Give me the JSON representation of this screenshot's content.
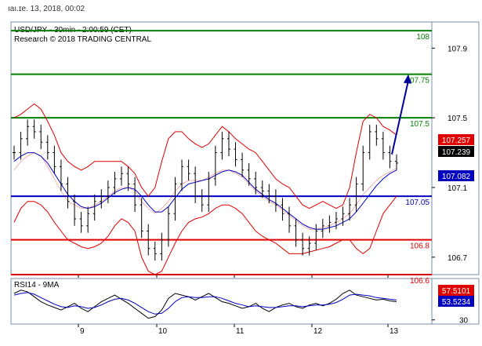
{
  "header": {
    "date_text": "ıaı.ɪe. 13, 2018, 00:02"
  },
  "chart_data": [
    {
      "type": "line",
      "title": "USD/JPY - 30min - 2:00:59 (CET)",
      "subtitle": "Research © 2018 TRADING CENTRAL",
      "ylim": [
        106.6,
        108.05
      ],
      "y_ticks": [
        106.7,
        107.1,
        107.5,
        107.9
      ],
      "y_tick_labels": [
        "106.7",
        "107.1",
        "107.5",
        "107.9"
      ],
      "x_tick_labels": [
        "9",
        "10",
        "11",
        "12",
        "13"
      ],
      "levels": [
        {
          "label": "108",
          "value": 108.0,
          "color": "#008000"
        },
        {
          "label": "107.75",
          "value": 107.75,
          "color": "#008000"
        },
        {
          "label": "107.5",
          "value": 107.5,
          "color": "#008000"
        },
        {
          "label": "107.05",
          "value": 107.05,
          "color": "#0000c0"
        },
        {
          "label": "106.8",
          "value": 106.8,
          "color": "#e00000"
        },
        {
          "label": "106.6",
          "value": 106.6,
          "color": "#e00000"
        }
      ],
      "price_tags": [
        {
          "label": "107.257",
          "value": 107.257,
          "color": "#e00000"
        },
        {
          "label": "107.239",
          "value": 107.239,
          "color": "#000000"
        },
        {
          "label": "107.082",
          "value": 107.082,
          "color": "#0000c0"
        }
      ],
      "forecast_arrow": {
        "from": 107.29,
        "to": 107.75,
        "color": "#0000a0"
      },
      "price_series": [
        107.3,
        107.38,
        107.45,
        107.42,
        107.36,
        107.3,
        107.22,
        107.12,
        107.02,
        106.92,
        106.88,
        106.95,
        107.02,
        107.05,
        107.1,
        107.15,
        107.18,
        107.12,
        107.0,
        106.85,
        106.75,
        106.72,
        106.8,
        106.95,
        107.12,
        107.22,
        107.18,
        107.05,
        107.0,
        107.15,
        107.3,
        107.38,
        107.32,
        107.26,
        107.2,
        107.15,
        107.1,
        107.08,
        107.05,
        107.0,
        106.95,
        106.88,
        106.8,
        106.75,
        106.78,
        106.85,
        106.88,
        106.9,
        106.92,
        106.95,
        107.0,
        107.12,
        107.3,
        107.42,
        107.38,
        107.3,
        107.25,
        107.24
      ],
      "bb_upper": [
        107.5,
        107.52,
        107.55,
        107.58,
        107.55,
        107.48,
        107.4,
        107.3,
        107.25,
        107.22,
        107.2,
        107.22,
        107.25,
        107.25,
        107.25,
        107.25,
        107.25,
        107.22,
        107.18,
        107.1,
        107.05,
        107.1,
        107.25,
        107.38,
        107.42,
        107.42,
        107.38,
        107.35,
        107.33,
        107.35,
        107.4,
        107.45,
        107.42,
        107.38,
        107.35,
        107.32,
        107.3,
        107.25,
        107.2,
        107.15,
        107.12,
        107.1,
        107.05,
        107.0,
        106.98,
        107.0,
        107.02,
        107.0,
        106.98,
        107.0,
        107.1,
        107.3,
        107.48,
        107.52,
        107.5,
        107.45,
        107.43,
        107.4
      ],
      "bb_mid": [
        107.2,
        107.25,
        107.28,
        107.3,
        107.28,
        107.22,
        107.15,
        107.08,
        107.02,
        107.0,
        106.98,
        106.98,
        107.0,
        107.02,
        107.05,
        107.08,
        107.1,
        107.1,
        107.08,
        107.02,
        106.98,
        106.95,
        106.98,
        107.02,
        107.08,
        107.12,
        107.14,
        107.14,
        107.14,
        107.16,
        107.18,
        107.2,
        107.2,
        107.18,
        107.16,
        107.12,
        107.08,
        107.05,
        107.02,
        107.0,
        106.97,
        106.94,
        106.91,
        106.88,
        106.86,
        106.86,
        106.87,
        106.88,
        106.9,
        106.92,
        106.95,
        107.0,
        107.06,
        107.1,
        107.14,
        107.17,
        107.19,
        107.21
      ],
      "bb_lower": [
        106.9,
        106.98,
        107.02,
        107.02,
        107.0,
        106.96,
        106.9,
        106.85,
        106.8,
        106.78,
        106.76,
        106.75,
        106.76,
        106.78,
        106.82,
        106.88,
        106.92,
        106.9,
        106.85,
        106.7,
        106.62,
        106.6,
        106.62,
        106.7,
        106.78,
        106.85,
        106.9,
        106.92,
        106.93,
        106.95,
        106.98,
        107.0,
        107.0,
        106.98,
        106.95,
        106.9,
        106.85,
        106.82,
        106.8,
        106.78,
        106.75,
        106.72,
        106.72,
        106.72,
        106.73,
        106.74,
        106.75,
        106.76,
        106.78,
        106.8,
        106.8,
        106.75,
        106.72,
        106.75,
        106.85,
        106.95,
        107.0,
        107.05
      ],
      "ma_series": [
        107.25,
        107.28,
        107.3,
        107.3,
        107.28,
        107.24,
        107.18,
        107.12,
        107.06,
        107.02,
        106.99,
        106.98,
        106.99,
        107.01,
        107.04,
        107.07,
        107.09,
        107.1,
        107.09,
        107.05,
        107.0,
        106.96,
        106.96,
        106.99,
        107.04,
        107.09,
        107.12,
        107.13,
        107.14,
        107.15,
        107.17,
        107.19,
        107.2,
        107.19,
        107.17,
        107.13,
        107.09,
        107.06,
        107.03,
        107.01,
        106.98,
        106.95,
        106.92,
        106.89,
        106.87,
        106.86,
        106.86,
        106.87,
        106.88,
        106.9,
        106.92,
        106.96,
        107.01,
        107.06,
        107.11,
        107.15,
        107.18,
        107.2
      ]
    },
    {
      "type": "line",
      "title": "RSI14 - 9MA",
      "ylim": [
        25,
        80
      ],
      "y_ticks": [
        30
      ],
      "y_tick_labels": [
        "30"
      ],
      "x_tick_labels": [
        "9",
        "10",
        "11",
        "12",
        "13"
      ],
      "value_tags": [
        {
          "label": "57.5101",
          "value": 57.5101,
          "color": "#e00000"
        },
        {
          "label": "53.5234",
          "value": 53.5234,
          "color": "#0000c0"
        }
      ],
      "series": [
        {
          "values": [
            62,
            66,
            64,
            58,
            52,
            48,
            45,
            42,
            46,
            50,
            44,
            40,
            46,
            52,
            56,
            60,
            55,
            50,
            44,
            38,
            32,
            34,
            42,
            56,
            62,
            60,
            58,
            54,
            58,
            62,
            57,
            52,
            50,
            47,
            44,
            46,
            50,
            44,
            40,
            45,
            48,
            50,
            46,
            44,
            48,
            50,
            47,
            50,
            55,
            62,
            66,
            60,
            58,
            56,
            54,
            55,
            53,
            52
          ],
          "color": "#000000"
        },
        {
          "values": [
            60,
            62,
            63,
            61,
            57,
            53,
            49,
            46,
            45,
            47,
            46,
            44,
            45,
            48,
            52,
            55,
            56,
            54,
            50,
            45,
            40,
            37,
            38,
            44,
            52,
            57,
            58,
            57,
            57,
            58,
            58,
            56,
            53,
            50,
            48,
            46,
            47,
            46,
            45,
            45,
            46,
            47,
            47,
            46,
            47,
            48,
            48,
            49,
            51,
            55,
            60,
            61,
            60,
            59,
            57,
            56,
            55,
            54
          ],
          "color": "#0000c0"
        }
      ]
    }
  ]
}
